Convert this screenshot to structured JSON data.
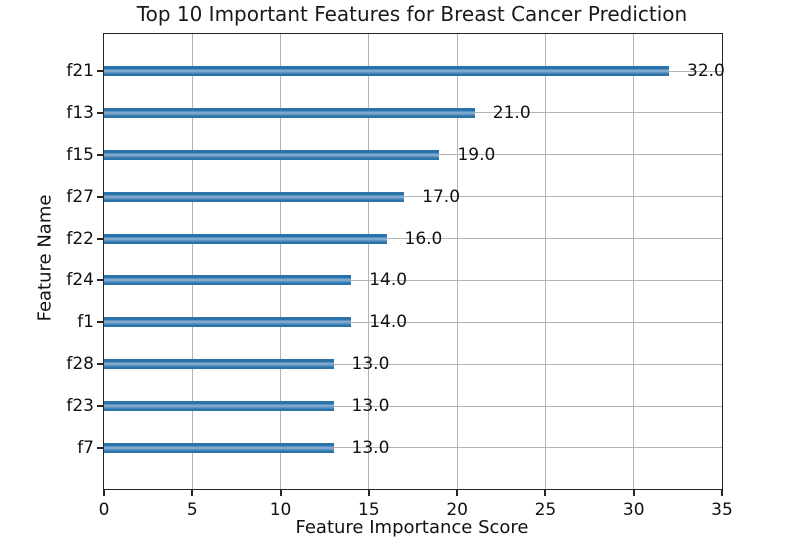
{
  "chart_data": {
    "type": "bar",
    "orientation": "horizontal",
    "title": "Top 10 Important Features for Breast Cancer Prediction",
    "xlabel": "Feature Importance Score",
    "ylabel": "Feature Name",
    "categories": [
      "f21",
      "f13",
      "f15",
      "f27",
      "f22",
      "f24",
      "f1",
      "f28",
      "f23",
      "f7"
    ],
    "values": [
      32,
      21,
      19,
      17,
      16,
      14,
      14,
      13,
      13,
      13
    ],
    "value_labels": [
      "32.0",
      "21.0",
      "19.0",
      "17.0",
      "16.0",
      "14.0",
      "14.0",
      "13.0",
      "13.0",
      "13.0"
    ],
    "xticks": [
      0,
      5,
      10,
      15,
      20,
      25,
      30,
      35
    ],
    "xlim": [
      0,
      35
    ],
    "grid": true,
    "legend": null,
    "colors": {
      "bar_edge": "#2a72aa",
      "bar_mid": "#5b92bf",
      "bar_light": "#7fa9cd",
      "grid": "#b4b4b4",
      "spine": "#262626",
      "text": "#111111"
    }
  }
}
